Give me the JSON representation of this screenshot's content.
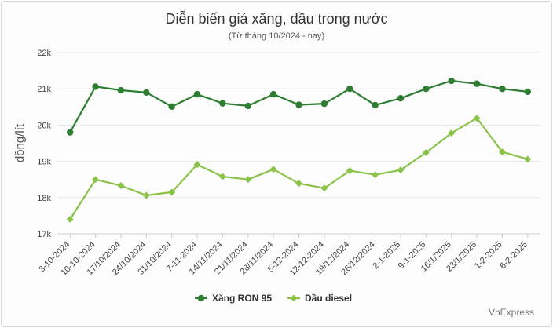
{
  "chart_data": {
    "type": "line",
    "title": "Diễn biến giá xăng, dầu trong nước",
    "subtitle": "(Từ tháng 10/2024 - nay)",
    "ylabel": "đồng/lít",
    "xlabel": "",
    "ylim": [
      17000,
      22000
    ],
    "yticks": [
      17000,
      18000,
      19000,
      20000,
      21000,
      22000
    ],
    "ytick_labels": [
      "17k",
      "18k",
      "19k",
      "20k",
      "21k",
      "22k"
    ],
    "grid": "horizontal",
    "legend_position": "bottom",
    "categories": [
      "3-10-2024",
      "10-10-2024",
      "17/10/2024",
      "24/10/2024",
      "31/10/2024",
      "7-11-2024",
      "14/11/2024",
      "21/11/2024",
      "28/11/2024",
      "5-12-2024",
      "12-12-2024",
      "19/12/2024",
      "26/12/2024",
      "2-1-2025",
      "9-1-2025",
      "16/1/2025",
      "23/1/2025",
      "1-2-2025",
      "6-2-2025"
    ],
    "series": [
      {
        "name": "Xăng RON 95",
        "color": "#2e7d32",
        "marker": "circle",
        "values": [
          19800,
          21060,
          20960,
          20900,
          20510,
          20850,
          20600,
          20530,
          20850,
          20560,
          20590,
          21000,
          20550,
          20740,
          21000,
          21220,
          21140,
          21000,
          20920
        ]
      },
      {
        "name": "Dầu diesel",
        "color": "#8bc34a",
        "marker": "diamond",
        "values": [
          17400,
          18500,
          18330,
          18060,
          18150,
          18910,
          18580,
          18500,
          18780,
          18390,
          18260,
          18740,
          18630,
          18760,
          19240,
          19780,
          20190,
          19260,
          19060
        ]
      }
    ]
  },
  "source": "VnExpress"
}
